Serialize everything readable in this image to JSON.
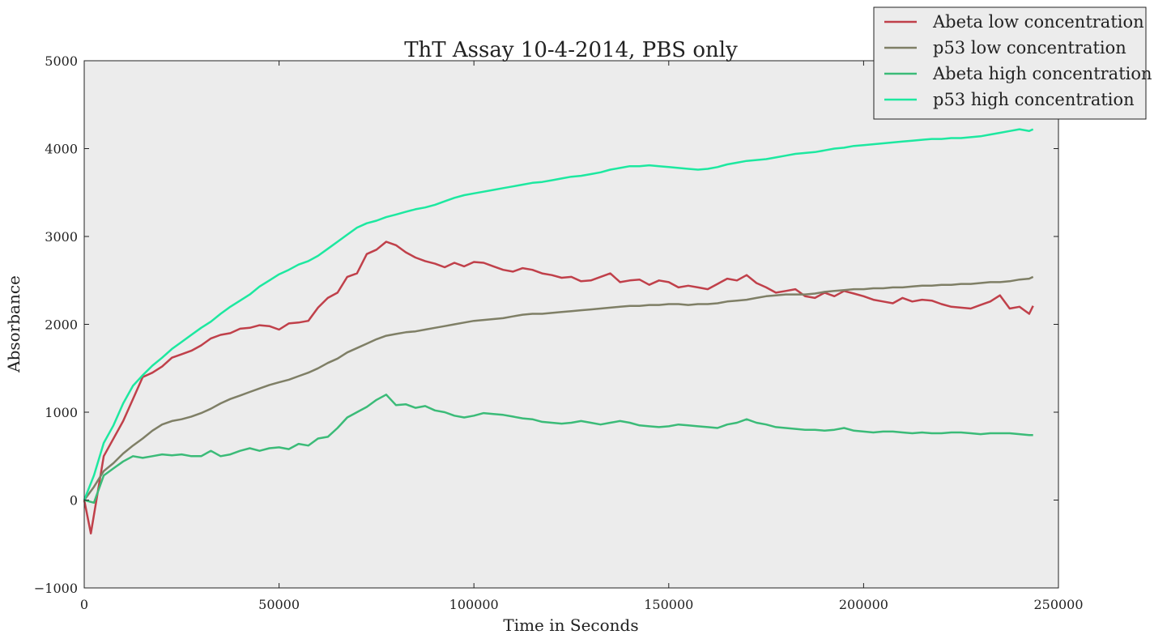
{
  "chart_data": {
    "type": "line",
    "title": "ThT Assay 10-4-2014, PBS only",
    "xlabel": "Time in Seconds",
    "ylabel": "Absorbance",
    "xlim": [
      0,
      250000
    ],
    "ylim": [
      -1000,
      5000
    ],
    "xticks": [
      0,
      50000,
      100000,
      150000,
      200000,
      250000
    ],
    "xtick_labels": [
      "0",
      "50000",
      "100000",
      "150000",
      "200000",
      "250000"
    ],
    "yticks": [
      -1000,
      0,
      1000,
      2000,
      3000,
      4000,
      5000
    ],
    "ytick_labels": [
      "−1000",
      "0",
      "1000",
      "2000",
      "3000",
      "4000",
      "5000"
    ],
    "grid": false,
    "legend_position": "top-right",
    "background": "#ececec",
    "series": [
      {
        "name": "Abeta low concentration",
        "color": "#c0404a",
        "x": [
          0,
          1700,
          5000,
          10000,
          12500,
          15000,
          17500,
          20000,
          22500,
          25000,
          27500,
          30000,
          32500,
          35000,
          37500,
          40000,
          42500,
          45000,
          47500,
          50000,
          52500,
          55000,
          57500,
          60000,
          62500,
          65000,
          67500,
          70000,
          72500,
          75000,
          77500,
          80000,
          82500,
          85000,
          87500,
          90000,
          92500,
          95000,
          97500,
          100000,
          102500,
          105000,
          107500,
          110000,
          112500,
          115000,
          117500,
          120000,
          122500,
          125000,
          127500,
          130000,
          132500,
          135000,
          137500,
          140000,
          142500,
          145000,
          147500,
          150000,
          152500,
          155000,
          157500,
          160000,
          162500,
          165000,
          167500,
          170000,
          172500,
          175000,
          177500,
          180000,
          182500,
          185000,
          187500,
          190000,
          192500,
          195000,
          197500,
          200000,
          202500,
          205000,
          207500,
          210000,
          212500,
          215000,
          217500,
          220000,
          222500,
          225000,
          227500,
          230000,
          232500,
          235000,
          237500,
          240000,
          242500,
          243500
        ],
        "y": [
          0,
          -380,
          500,
          900,
          1150,
          1400,
          1450,
          1520,
          1620,
          1660,
          1700,
          1760,
          1840,
          1880,
          1900,
          1950,
          1960,
          1990,
          1980,
          1940,
          2010,
          2020,
          2040,
          2190,
          2300,
          2360,
          2540,
          2580,
          2800,
          2850,
          2940,
          2900,
          2820,
          2760,
          2720,
          2690,
          2650,
          2700,
          2660,
          2710,
          2700,
          2660,
          2620,
          2600,
          2640,
          2620,
          2580,
          2560,
          2530,
          2540,
          2490,
          2500,
          2540,
          2580,
          2480,
          2500,
          2510,
          2450,
          2500,
          2480,
          2420,
          2440,
          2420,
          2400,
          2460,
          2520,
          2500,
          2560,
          2470,
          2420,
          2360,
          2380,
          2400,
          2320,
          2300,
          2360,
          2320,
          2380,
          2350,
          2320,
          2280,
          2260,
          2240,
          2300,
          2260,
          2280,
          2270,
          2230,
          2200,
          2190,
          2180,
          2220,
          2260,
          2330,
          2180,
          2200,
          2120,
          2210
        ]
      },
      {
        "name": "p53 low concentration",
        "color": "#7f7f66",
        "x": [
          0,
          2500,
          5000,
          7500,
          10000,
          12500,
          15000,
          17500,
          20000,
          22500,
          25000,
          27500,
          30000,
          32500,
          35000,
          37500,
          40000,
          42500,
          45000,
          47500,
          50000,
          52500,
          55000,
          57500,
          60000,
          62500,
          65000,
          67500,
          70000,
          72500,
          75000,
          77500,
          80000,
          82500,
          85000,
          87500,
          90000,
          92500,
          95000,
          97500,
          100000,
          102500,
          105000,
          107500,
          110000,
          112500,
          115000,
          117500,
          120000,
          122500,
          125000,
          127500,
          130000,
          132500,
          135000,
          137500,
          140000,
          142500,
          145000,
          147500,
          150000,
          152500,
          155000,
          157500,
          160000,
          162500,
          165000,
          167500,
          170000,
          172500,
          175000,
          177500,
          180000,
          182500,
          185000,
          187500,
          190000,
          192500,
          195000,
          197500,
          200000,
          202500,
          205000,
          207500,
          210000,
          212500,
          215000,
          217500,
          220000,
          222500,
          225000,
          227500,
          230000,
          232500,
          235000,
          237500,
          240000,
          242500,
          243500
        ],
        "y": [
          0,
          150,
          330,
          420,
          530,
          620,
          700,
          790,
          860,
          900,
          920,
          950,
          990,
          1040,
          1100,
          1150,
          1190,
          1230,
          1270,
          1310,
          1340,
          1370,
          1410,
          1450,
          1500,
          1560,
          1610,
          1680,
          1730,
          1780,
          1830,
          1870,
          1890,
          1910,
          1920,
          1940,
          1960,
          1980,
          2000,
          2020,
          2040,
          2050,
          2060,
          2070,
          2090,
          2110,
          2120,
          2120,
          2130,
          2140,
          2150,
          2160,
          2170,
          2180,
          2190,
          2200,
          2210,
          2210,
          2220,
          2220,
          2230,
          2230,
          2220,
          2230,
          2230,
          2240,
          2260,
          2270,
          2280,
          2300,
          2320,
          2330,
          2340,
          2340,
          2340,
          2350,
          2370,
          2380,
          2390,
          2400,
          2400,
          2410,
          2410,
          2420,
          2420,
          2430,
          2440,
          2440,
          2450,
          2450,
          2460,
          2460,
          2470,
          2480,
          2480,
          2490,
          2510,
          2520,
          2540
        ]
      },
      {
        "name": "Abeta high concentration",
        "color": "#3bbb78",
        "x": [
          0,
          2500,
          5000,
          7500,
          10000,
          12500,
          15000,
          17500,
          20000,
          22500,
          25000,
          27500,
          30000,
          32500,
          35000,
          37500,
          40000,
          42500,
          45000,
          47500,
          50000,
          52500,
          55000,
          57500,
          60000,
          62500,
          65000,
          67500,
          70000,
          72500,
          75000,
          77500,
          80000,
          82500,
          85000,
          87500,
          90000,
          92500,
          95000,
          97500,
          100000,
          102500,
          105000,
          107500,
          110000,
          112500,
          115000,
          117500,
          120000,
          122500,
          125000,
          127500,
          130000,
          132500,
          135000,
          137500,
          140000,
          142500,
          145000,
          147500,
          150000,
          152500,
          155000,
          157500,
          160000,
          162500,
          165000,
          167500,
          170000,
          172500,
          175000,
          177500,
          180000,
          182500,
          185000,
          187500,
          190000,
          192500,
          195000,
          197500,
          200000,
          202500,
          205000,
          207500,
          210000,
          212500,
          215000,
          217500,
          220000,
          222500,
          225000,
          227500,
          230000,
          232500,
          235000,
          237500,
          240000,
          242500,
          243500
        ],
        "y": [
          0,
          -30,
          280,
          360,
          440,
          500,
          480,
          500,
          520,
          510,
          520,
          500,
          500,
          560,
          500,
          520,
          560,
          590,
          560,
          590,
          600,
          580,
          640,
          620,
          700,
          720,
          820,
          940,
          1000,
          1060,
          1140,
          1200,
          1080,
          1090,
          1050,
          1070,
          1020,
          1000,
          960,
          940,
          960,
          990,
          980,
          970,
          950,
          930,
          920,
          890,
          880,
          870,
          880,
          900,
          880,
          860,
          880,
          900,
          880,
          850,
          840,
          830,
          840,
          860,
          850,
          840,
          830,
          820,
          860,
          880,
          920,
          880,
          860,
          830,
          820,
          810,
          800,
          800,
          790,
          800,
          820,
          790,
          780,
          770,
          780,
          780,
          770,
          760,
          770,
          760,
          760,
          770,
          770,
          760,
          750,
          760,
          760,
          760,
          750,
          740,
          740
        ]
      },
      {
        "name": "p53 high concentration",
        "color": "#1de8a0",
        "x": [
          0,
          2500,
          5000,
          7500,
          10000,
          12500,
          15000,
          17500,
          20000,
          22500,
          25000,
          27500,
          30000,
          32500,
          35000,
          37500,
          40000,
          42500,
          45000,
          47500,
          50000,
          52500,
          55000,
          57500,
          60000,
          62500,
          65000,
          67500,
          70000,
          72500,
          75000,
          77500,
          80000,
          82500,
          85000,
          87500,
          90000,
          92500,
          95000,
          97500,
          100000,
          102500,
          105000,
          107500,
          110000,
          112500,
          115000,
          117500,
          120000,
          122500,
          125000,
          127500,
          130000,
          132500,
          135000,
          137500,
          140000,
          142500,
          145000,
          147500,
          150000,
          152500,
          155000,
          157500,
          160000,
          162500,
          165000,
          167500,
          170000,
          172500,
          175000,
          177500,
          180000,
          182500,
          185000,
          187500,
          190000,
          192500,
          195000,
          197500,
          200000,
          202500,
          205000,
          207500,
          210000,
          212500,
          215000,
          217500,
          220000,
          222500,
          225000,
          227500,
          230000,
          232500,
          235000,
          237500,
          240000,
          242500,
          243500
        ],
        "y": [
          0,
          280,
          650,
          850,
          1100,
          1300,
          1420,
          1530,
          1620,
          1720,
          1800,
          1880,
          1960,
          2030,
          2120,
          2200,
          2270,
          2340,
          2430,
          2500,
          2570,
          2620,
          2680,
          2720,
          2780,
          2860,
          2940,
          3020,
          3100,
          3150,
          3180,
          3220,
          3250,
          3280,
          3310,
          3330,
          3360,
          3400,
          3440,
          3470,
          3490,
          3510,
          3530,
          3550,
          3570,
          3590,
          3610,
          3620,
          3640,
          3660,
          3680,
          3690,
          3710,
          3730,
          3760,
          3780,
          3800,
          3800,
          3810,
          3800,
          3790,
          3780,
          3770,
          3760,
          3770,
          3790,
          3820,
          3840,
          3860,
          3870,
          3880,
          3900,
          3920,
          3940,
          3950,
          3960,
          3980,
          4000,
          4010,
          4030,
          4040,
          4050,
          4060,
          4070,
          4080,
          4090,
          4100,
          4110,
          4110,
          4120,
          4120,
          4130,
          4140,
          4160,
          4180,
          4200,
          4220,
          4200,
          4220
        ]
      }
    ]
  }
}
